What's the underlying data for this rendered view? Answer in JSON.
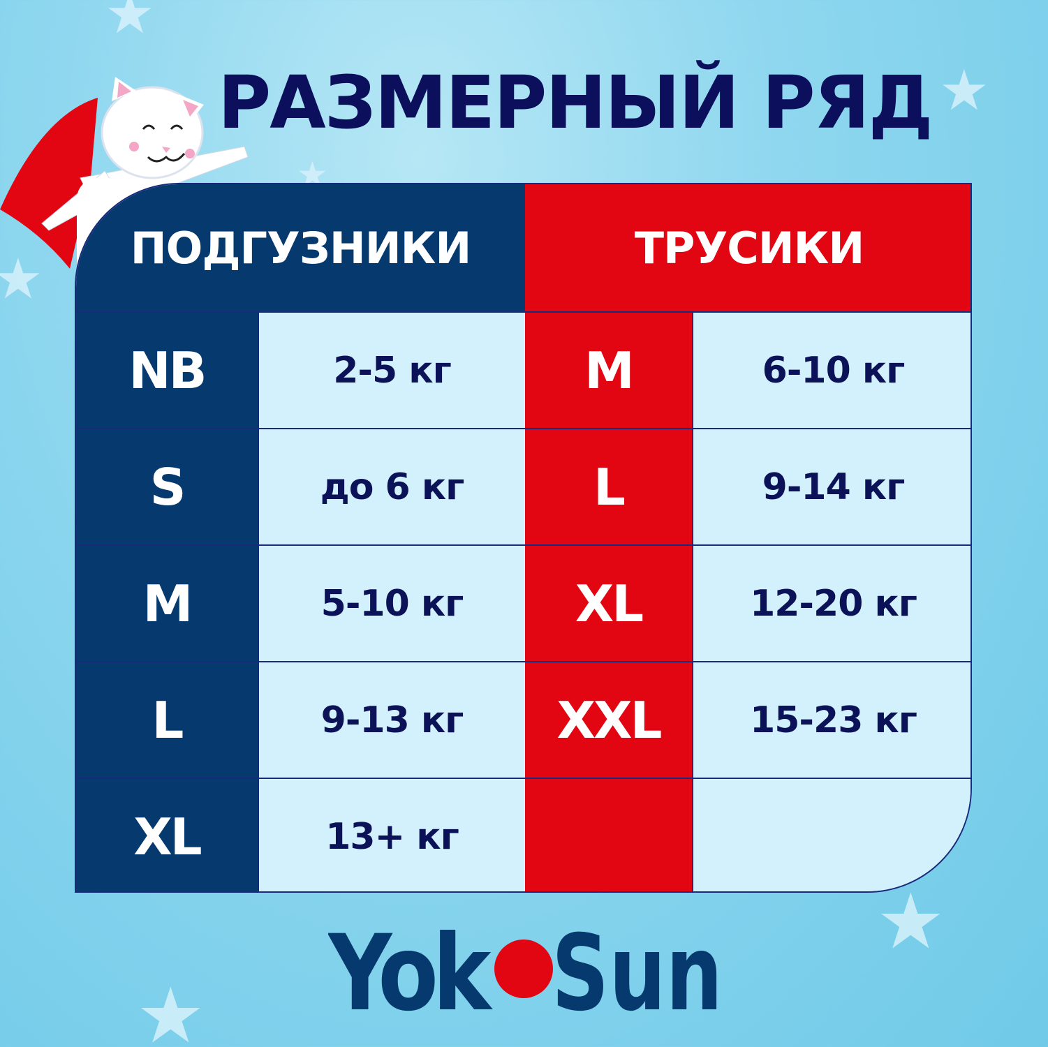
{
  "title": "РАЗМЕРНЫЙ РЯД",
  "colors": {
    "navy": "#063a6e",
    "red": "#e20613",
    "light_cell": "#d3f1fc",
    "text": "#0c1258"
  },
  "diapers": {
    "header": "ПОДГУЗНИКИ",
    "rows": [
      {
        "size": "NB",
        "weight": "2-5 кг"
      },
      {
        "size": "S",
        "weight": "до 6 кг"
      },
      {
        "size": "M",
        "weight": "5-10 кг"
      },
      {
        "size": "L",
        "weight": "9-13 кг"
      },
      {
        "size": "XL",
        "weight": "13+ кг"
      }
    ]
  },
  "pants": {
    "header": "ТРУСИКИ",
    "rows": [
      {
        "size": "M",
        "weight": "6-10 кг"
      },
      {
        "size": "L",
        "weight": "9-14 кг"
      },
      {
        "size": "XL",
        "weight": "12-20 кг"
      },
      {
        "size": "XXL",
        "weight": "15-23 кг"
      },
      {
        "size": "",
        "weight": ""
      }
    ]
  },
  "brand": {
    "logo": "YokoSun"
  }
}
